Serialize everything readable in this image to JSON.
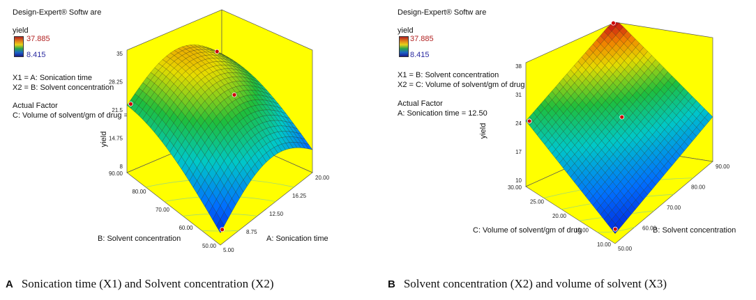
{
  "chart_data": [
    {
      "type": "surface",
      "panel_letter": "A",
      "caption": "Sonication time (X1)  and Solvent concentration (X2)",
      "software": "Design-Expert® Softw are",
      "response": "yield",
      "legend_high": "37.885",
      "legend_low": "8.415",
      "factor_lines": [
        "X1 = A: Sonication time",
        "X2 = B: Solvent concentration"
      ],
      "actual_factor_title": "Actual Factor",
      "actual_factor_value": "C: Volume of solvent/gm of drug = 2",
      "zlabel": "yield",
      "zticks": [
        "8",
        "14.75",
        "21.5",
        "28.25",
        "35"
      ],
      "xlabel": "A: Sonication time",
      "xticks": [
        "5.00",
        "8.75",
        "12.50",
        "16.25",
        "20.00"
      ],
      "ylabel": "B: Solvent concentration",
      "yticks": [
        "50.00",
        "60.00",
        "70.00",
        "80.00",
        "90.00"
      ],
      "design_points_visible": 4,
      "colors": {
        "wall": "#ffff00",
        "low": "#0000cc",
        "high": "#cc0000"
      }
    },
    {
      "type": "surface",
      "panel_letter": "B",
      "caption": "Solvent concentration (X2)  and volume of solvent (X3)",
      "software": "Design-Expert® Softw are",
      "response": "yield",
      "legend_high": "37.885",
      "legend_low": "8.415",
      "factor_lines": [
        "X1 = B: Solvent concentration",
        "X2 = C: Volume of solvent/gm of drug"
      ],
      "actual_factor_title": "Actual Factor",
      "actual_factor_value": "A: Sonication time = 12.50",
      "zlabel": "yield",
      "zticks": [
        "10",
        "17",
        "24",
        "31",
        "38"
      ],
      "xlabel": "B: Solvent concentration",
      "xticks": [
        "50.00",
        "60.00",
        "70.00",
        "80.00",
        "90.00"
      ],
      "ylabel": "C: Volume of solvent/gm of drug",
      "yticks": [
        "10.00",
        "15.00",
        "20.00",
        "25.00",
        "30.00"
      ],
      "design_points_visible": 4,
      "colors": {
        "wall": "#ffff00",
        "low": "#0000cc",
        "high": "#cc0000"
      }
    }
  ]
}
